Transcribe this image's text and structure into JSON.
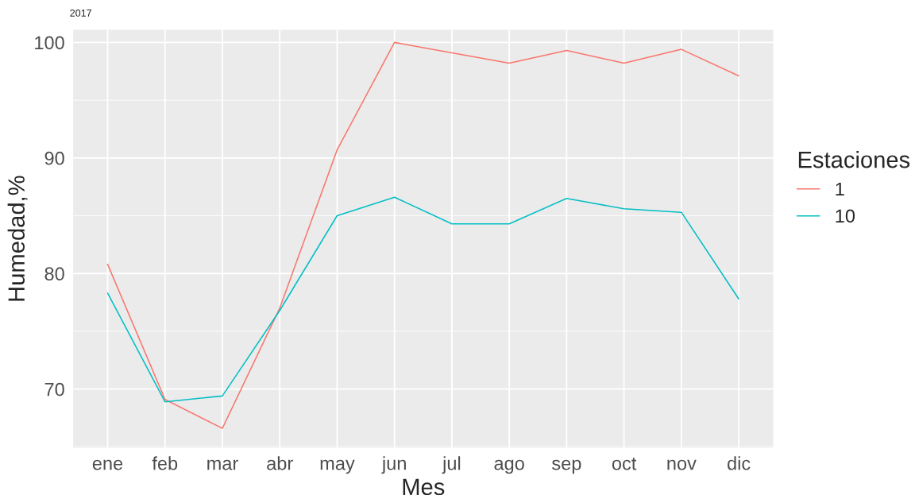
{
  "chart_data": {
    "type": "line",
    "title": "2017",
    "xlabel": "Mes",
    "ylabel": "Humedad,%",
    "legend_title": "Estaciones",
    "categories": [
      "ene",
      "feb",
      "mar",
      "abr",
      "may",
      "jun",
      "jul",
      "ago",
      "sep",
      "oct",
      "nov",
      "dic"
    ],
    "series": [
      {
        "name": "1",
        "color": "#f8766d",
        "values": [
          80.8,
          69.1,
          66.6,
          77.0,
          90.7,
          100.0,
          99.1,
          98.2,
          99.3,
          98.2,
          99.4,
          97.1
        ]
      },
      {
        "name": "10",
        "color": "#00bfc4",
        "values": [
          78.3,
          68.9,
          69.4,
          76.8,
          85.0,
          86.6,
          84.3,
          84.3,
          86.5,
          85.6,
          85.3,
          77.8
        ]
      }
    ],
    "ylim": [
      64.9,
      101.1
    ],
    "yticks": [
      70,
      80,
      90,
      100
    ],
    "grid": true,
    "legend": "right"
  }
}
